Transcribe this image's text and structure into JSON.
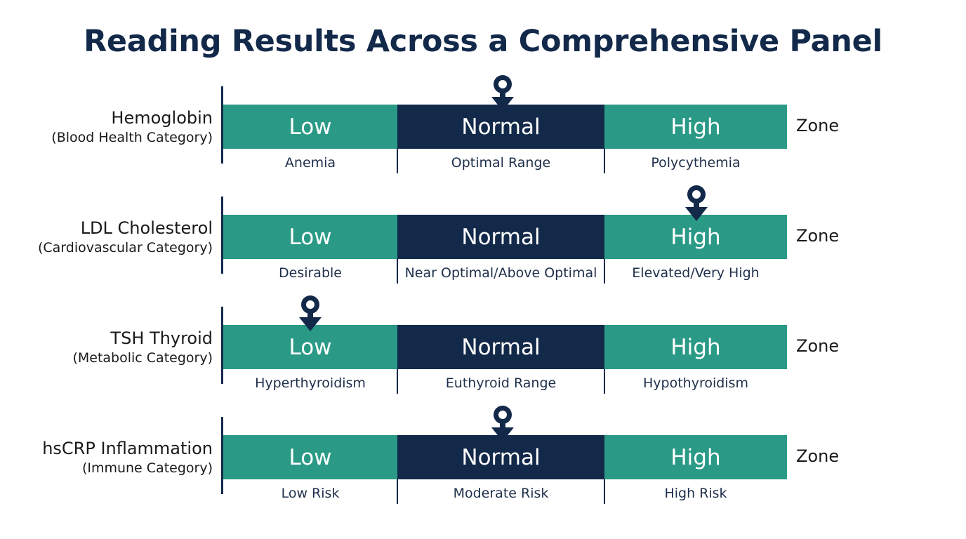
{
  "title": "Reading Results Across a Comprehensive Panel",
  "colors": {
    "navy": "#13294a",
    "teal": "#2a9a86"
  },
  "rows": [
    {
      "name": "Hemoglobin",
      "category": "(Blood Health Category)",
      "zone_label": "Zone",
      "segments": [
        {
          "label": "Low",
          "description": "Anemia"
        },
        {
          "label": "Normal",
          "description": "Optimal Range"
        },
        {
          "label": "High",
          "description": "Polycythemia"
        }
      ],
      "marker_icon": "location-pin-icon",
      "marker_zone": "Normal"
    },
    {
      "name": "LDL Cholesterol",
      "category": "(Cardiovascular Category)",
      "zone_label": "Zone",
      "segments": [
        {
          "label": "Low",
          "description": "Desirable"
        },
        {
          "label": "Normal",
          "description": "Near Optimal/Above Optimal"
        },
        {
          "label": "High",
          "description": "Elevated/Very High"
        }
      ],
      "marker_icon": "location-pin-icon",
      "marker_zone": "High"
    },
    {
      "name": "TSH Thyroid",
      "category": "(Metabolic Category)",
      "zone_label": "Zone",
      "segments": [
        {
          "label": "Low",
          "description": "Hyperthyroidism"
        },
        {
          "label": "Normal",
          "description": "Euthyroid Range"
        },
        {
          "label": "High",
          "description": "Hypothyroidism"
        }
      ],
      "marker_icon": "location-pin-icon",
      "marker_zone": "Low"
    },
    {
      "name": "hsCRP Inflammation",
      "category": "(Immune Category)",
      "zone_label": "Zone",
      "segments": [
        {
          "label": "Low",
          "description": "Low Risk"
        },
        {
          "label": "Normal",
          "description": "Moderate Risk"
        },
        {
          "label": "High",
          "description": "High Risk"
        }
      ],
      "marker_icon": "location-pin-icon",
      "marker_zone": "Normal"
    }
  ]
}
